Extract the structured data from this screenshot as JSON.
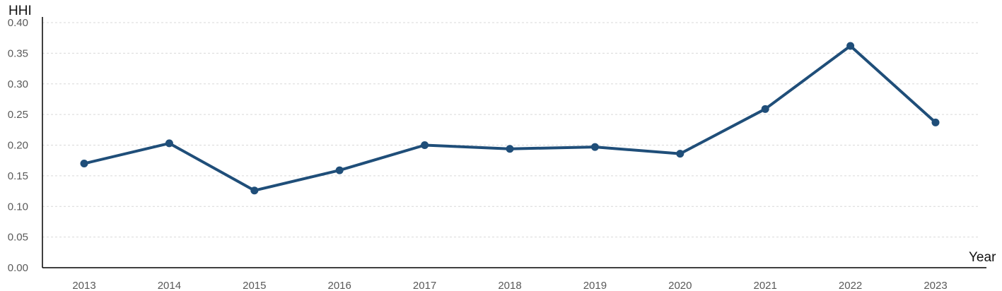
{
  "chart_data": {
    "type": "line",
    "title": "",
    "xlabel": "Year",
    "ylabel": "HHI",
    "categories": [
      "2013",
      "2014",
      "2015",
      "2016",
      "2017",
      "2018",
      "2019",
      "2020",
      "2021",
      "2022",
      "2023"
    ],
    "series": [
      {
        "values": [
          0.17,
          0.203,
          0.126,
          0.159,
          0.2,
          0.194,
          0.197,
          0.186,
          0.259,
          0.362,
          0.237
        ]
      }
    ],
    "ylim": [
      0,
      0.4
    ],
    "yticks": [
      "0.00",
      "0.05",
      "0.10",
      "0.15",
      "0.20",
      "0.25",
      "0.30",
      "0.35",
      "0.40"
    ],
    "grid": "horizontal-dashed",
    "markers": true,
    "legend": "none",
    "colors": {
      "line": "#1f4e79",
      "grid": "#d9d9d9",
      "axis": "#000000",
      "tick_text": "#595959"
    }
  }
}
